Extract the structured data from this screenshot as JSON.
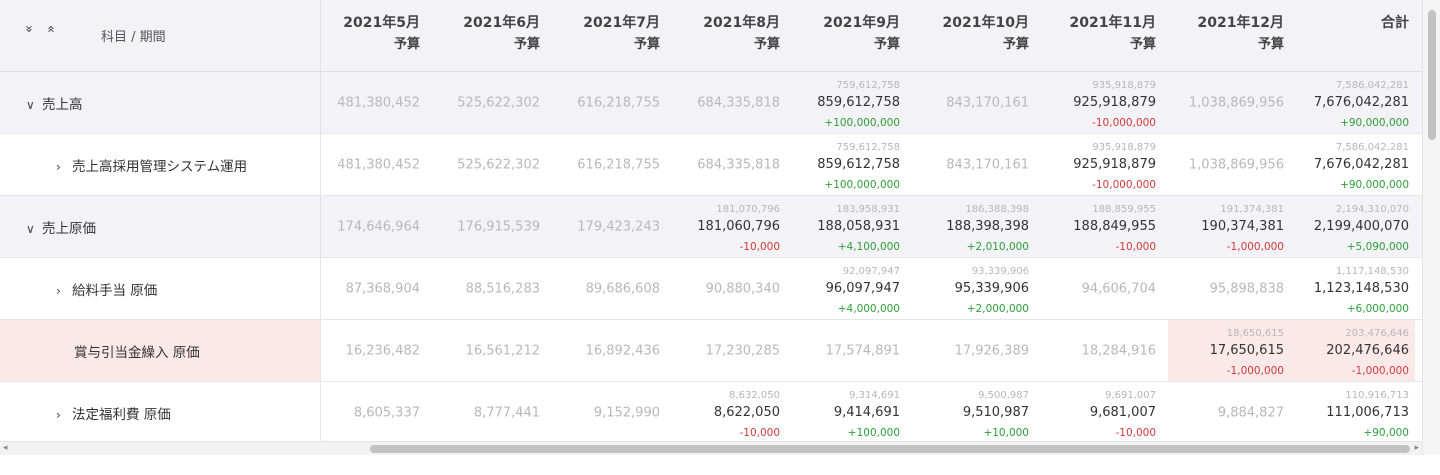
{
  "header": {
    "expand_all_icon": "»",
    "collapse_all_icon": "«",
    "title": "科目 / 期間",
    "columns": [
      {
        "month": "2021年5月",
        "sub": "予算"
      },
      {
        "month": "2021年6月",
        "sub": "予算"
      },
      {
        "month": "2021年7月",
        "sub": "予算"
      },
      {
        "month": "2021年8月",
        "sub": "予算"
      },
      {
        "month": "2021年9月",
        "sub": "予算"
      },
      {
        "month": "2021年10月",
        "sub": "予算"
      },
      {
        "month": "2021年11月",
        "sub": "予算"
      },
      {
        "month": "2021年12月",
        "sub": "予算"
      },
      {
        "month": "合計",
        "sub": ""
      }
    ]
  },
  "rows": [
    {
      "label": "売上高",
      "chevron": "∨",
      "cells": [
        {
          "v": "481,380,452"
        },
        {
          "v": "525,622,302"
        },
        {
          "v": "616,218,755"
        },
        {
          "v": "684,335,818"
        },
        {
          "prev": "759,612,758",
          "v": "859,612,758",
          "diff": "+100,000,000"
        },
        {
          "v": "843,170,161"
        },
        {
          "prev": "935,918,879",
          "v": "925,918,879",
          "diff": "-10,000,000"
        },
        {
          "v": "1,038,869,956"
        },
        {
          "prev": "7,586,042,281",
          "v": "7,676,042,281",
          "diff": "+90,000,000"
        }
      ]
    },
    {
      "label": "売上高採用管理システム運用",
      "chevron": "›",
      "cells": [
        {
          "v": "481,380,452"
        },
        {
          "v": "525,622,302"
        },
        {
          "v": "616,218,755"
        },
        {
          "v": "684,335,818"
        },
        {
          "prev": "759,612,758",
          "v": "859,612,758",
          "diff": "+100,000,000"
        },
        {
          "v": "843,170,161"
        },
        {
          "prev": "935,918,879",
          "v": "925,918,879",
          "diff": "-10,000,000"
        },
        {
          "v": "1,038,869,956"
        },
        {
          "prev": "7,586,042,281",
          "v": "7,676,042,281",
          "diff": "+90,000,000"
        }
      ]
    },
    {
      "label": "売上原価",
      "chevron": "∨",
      "cells": [
        {
          "v": "174,646,964"
        },
        {
          "v": "176,915,539"
        },
        {
          "v": "179,423,243"
        },
        {
          "prev": "181,070,796",
          "v": "181,060,796",
          "diff": "-10,000"
        },
        {
          "prev": "183,958,931",
          "v": "188,058,931",
          "diff": "+4,100,000"
        },
        {
          "prev": "186,388,398",
          "v": "188,398,398",
          "diff": "+2,010,000"
        },
        {
          "prev": "188,859,955",
          "v": "188,849,955",
          "diff": "-10,000"
        },
        {
          "prev": "191,374,381",
          "v": "190,374,381",
          "diff": "-1,000,000"
        },
        {
          "prev": "2,194,310,070",
          "v": "2,199,400,070",
          "diff": "+5,090,000"
        }
      ]
    },
    {
      "label": "給料手当 原価",
      "chevron": "›",
      "cells": [
        {
          "v": "87,368,904"
        },
        {
          "v": "88,516,283"
        },
        {
          "v": "89,686,608"
        },
        {
          "v": "90,880,340"
        },
        {
          "prev": "92,097,947",
          "v": "96,097,947",
          "diff": "+4,000,000"
        },
        {
          "prev": "93,339,906",
          "v": "95,339,906",
          "diff": "+2,000,000"
        },
        {
          "v": "94,606,704"
        },
        {
          "v": "95,898,838"
        },
        {
          "prev": "1,117,148,530",
          "v": "1,123,148,530",
          "diff": "+6,000,000"
        }
      ]
    },
    {
      "label": "賞与引当金繰入 原価",
      "chevron": "",
      "cells": [
        {
          "v": "16,236,482"
        },
        {
          "v": "16,561,212"
        },
        {
          "v": "16,892,436"
        },
        {
          "v": "17,230,285"
        },
        {
          "v": "17,574,891"
        },
        {
          "v": "17,926,389"
        },
        {
          "v": "18,284,916"
        },
        {
          "prev": "18,650,615",
          "v": "17,650,615",
          "diff": "-1,000,000"
        },
        {
          "prev": "203,476,646",
          "v": "202,476,646",
          "diff": "-1,000,000"
        }
      ]
    },
    {
      "label": "法定福利費 原価",
      "chevron": "›",
      "cells": [
        {
          "v": "8,605,337"
        },
        {
          "v": "8,777,441"
        },
        {
          "v": "9,152,990"
        },
        {
          "prev": "8,632,050",
          "v": "8,622,050",
          "diff": "-10,000"
        },
        {
          "prev": "9,314,691",
          "v": "9,414,691",
          "diff": "+100,000"
        },
        {
          "prev": "9,500,987",
          "v": "9,510,987",
          "diff": "+10,000"
        },
        {
          "prev": "9,691,007",
          "v": "9,681,007",
          "diff": "-10,000"
        },
        {
          "v": "9,884,827"
        },
        {
          "prev": "110,916,713",
          "v": "111,006,713",
          "diff": "+90,000"
        }
      ]
    }
  ],
  "colors": {
    "positive": "#2e9e3a",
    "negative": "#d13a3a",
    "highlight": "#fbe9ea",
    "group_bg": "#f3f2f7"
  }
}
